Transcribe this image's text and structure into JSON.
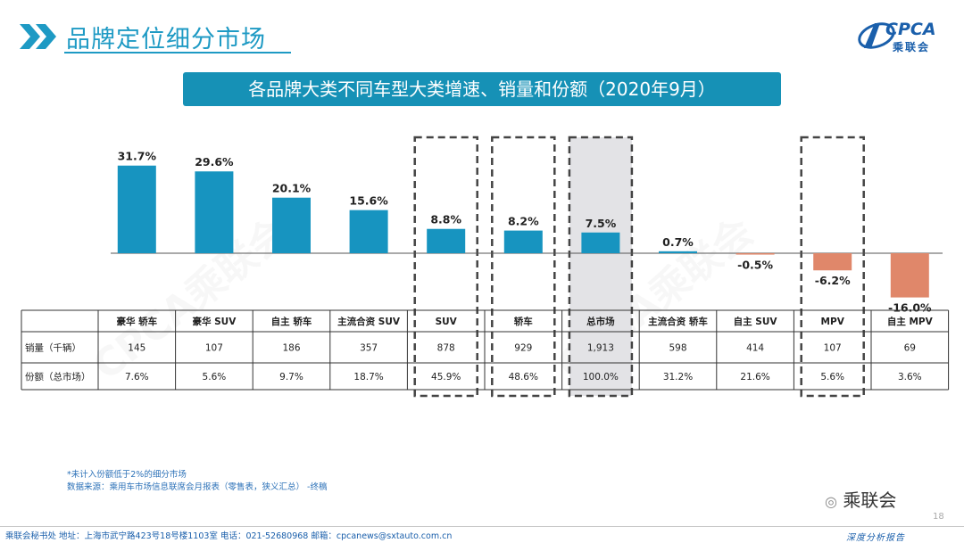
{
  "header": {
    "title": "品牌定位细分市场",
    "logo_text": "CPCA",
    "logo_cn": "乘联会"
  },
  "chart_data": {
    "type": "bar",
    "title": "各品牌大类不同车型大类增速、销量和份额（2020年9月）",
    "categories": [
      "豪华 轿车",
      "豪华 SUV",
      "自主 轿车",
      "主流合资 SUV",
      "SUV",
      "轿车",
      "总市场",
      "主流合资 轿车",
      "自主 SUV",
      "MPV",
      "自主 MPV"
    ],
    "values": [
      31.7,
      29.6,
      20.1,
      15.6,
      8.8,
      8.2,
      7.5,
      0.7,
      -0.5,
      -6.2,
      -16.0
    ],
    "value_labels": [
      "31.7%",
      "29.6%",
      "20.1%",
      "15.6%",
      "8.8%",
      "8.2%",
      "7.5%",
      "0.7%",
      "-0.5%",
      "-6.2%",
      "-16.0%"
    ],
    "highlighted_categories": [
      "SUV",
      "轿车",
      "总市场",
      "MPV"
    ],
    "shaded_category": "总市场",
    "colors": {
      "positive": "#1794c0",
      "negative": "#e0876a",
      "highlight_box": "#444444",
      "shade": "#e3e3e6"
    },
    "table": {
      "rows": [
        {
          "label": "销量（千辆）",
          "values": [
            "145",
            "107",
            "186",
            "357",
            "878",
            "929",
            "1,913",
            "598",
            "414",
            "107",
            "69"
          ]
        },
        {
          "label": "份额（总市场）",
          "values": [
            "7.6%",
            "5.6%",
            "9.7%",
            "18.7%",
            "45.9%",
            "48.6%",
            "100.0%",
            "31.2%",
            "21.6%",
            "5.6%",
            "3.6%"
          ]
        }
      ]
    }
  },
  "footnotes": {
    "line1": "*未计入份额低于2%的细分市场",
    "line2": "数据来源：乘用车市场信息联席会月报表（零售表，狭义汇总）  -终稿"
  },
  "footer": {
    "address": "乘联会秘书处   地址：上海市武宁路423号18号楼1103室   电话：021-52680968   邮箱：cpcanews@sxtauto.com.cn",
    "page_number": "18",
    "wechat_name": "乘联会",
    "slogan": "深度分析报告"
  },
  "watermark": "CPCA乘联会"
}
